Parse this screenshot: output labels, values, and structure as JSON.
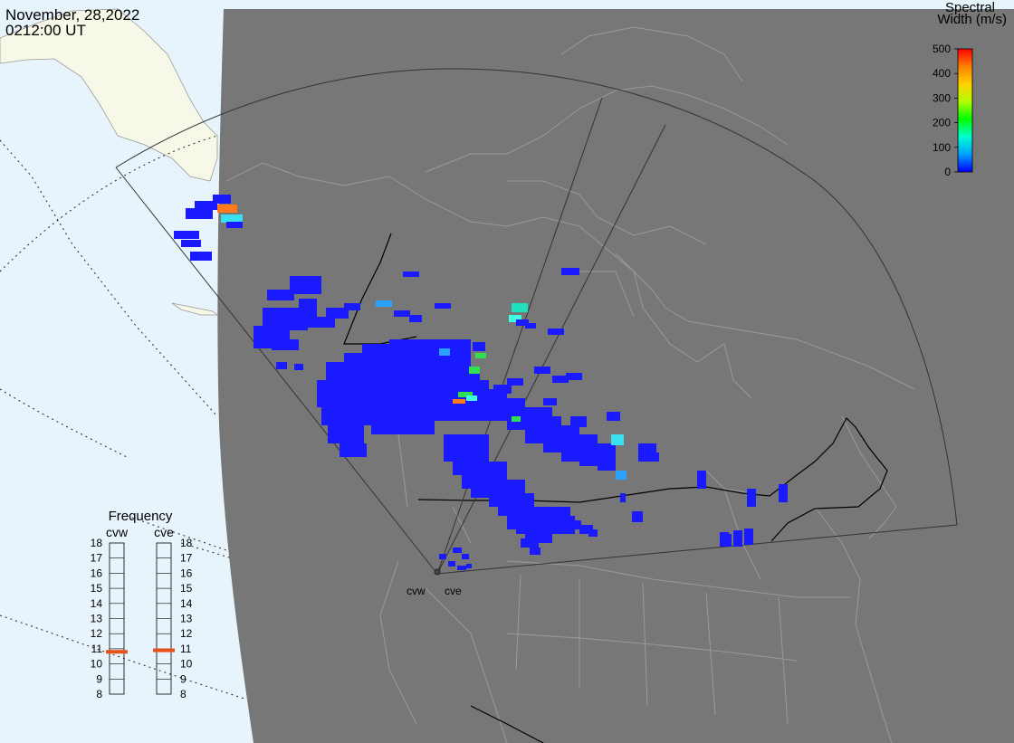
{
  "header": {
    "date": "November, 28,2022",
    "time": "0212:00 UT"
  },
  "colorbar": {
    "title_line1": "Spectral",
    "title_line2": "Width (m/s)",
    "ticks": [
      "500",
      "400",
      "300",
      "200",
      "100",
      "0"
    ],
    "tick_values": [
      500,
      400,
      300,
      200,
      100,
      0
    ],
    "range": [
      0,
      500
    ],
    "gradient": [
      "#0000ff",
      "#00a0ff",
      "#00ffd0",
      "#00ff00",
      "#b0ff00",
      "#ffd000",
      "#ff8000",
      "#ff0000"
    ]
  },
  "frequency_panel": {
    "title": "Frequency",
    "radars": [
      {
        "label": "cvw",
        "frequency_mhz": 10.8
      },
      {
        "label": "cve",
        "frequency_mhz": 10.9
      }
    ],
    "scale": [
      "18",
      "17",
      "16",
      "15",
      "14",
      "13",
      "12",
      "11",
      "10",
      "9",
      "8"
    ],
    "scale_range": [
      8,
      18
    ],
    "marker_color": "#e8501a"
  },
  "site_labels": {
    "west": "cvw",
    "east": "cve"
  },
  "colors": {
    "night": "#777777",
    "ocean_day": "#e8f4fb",
    "land_day": "#f8f8e8",
    "coast_lines": "#9a9a9a",
    "fov_lines": "#333333",
    "border_lines": "#000000"
  }
}
